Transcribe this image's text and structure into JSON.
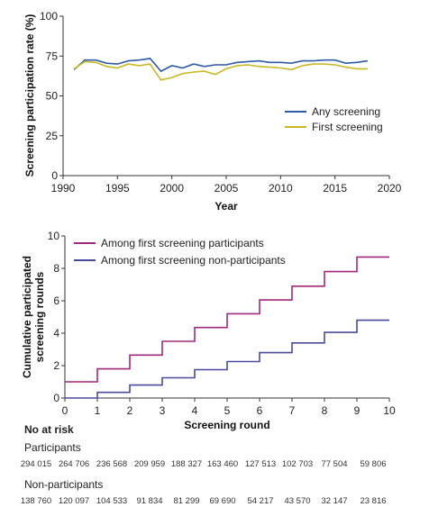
{
  "colors": {
    "any_screening": "#2e5aa7",
    "first_screening": "#c8b828",
    "among_participants": "#a0287e",
    "among_non_participants": "#4a4a9a",
    "axis": "#333333"
  },
  "chart_data": [
    {
      "type": "line",
      "xlabel": "Year",
      "ylabel": "Screening participation rate (%)",
      "xlim": [
        1990,
        2020
      ],
      "ylim": [
        0,
        100
      ],
      "xticks": [
        1990,
        1995,
        2000,
        2005,
        2010,
        2015,
        2020
      ],
      "yticks": [
        0,
        25,
        50,
        75,
        100
      ],
      "legend_position": "bottom-right",
      "grid": false,
      "series": [
        {
          "name": "Any screening",
          "x": [
            1991,
            1992,
            1993,
            1994,
            1995,
            1996,
            1997,
            1998,
            1999,
            2000,
            2001,
            2002,
            2003,
            2004,
            2005,
            2006,
            2007,
            2008,
            2009,
            2010,
            2011,
            2012,
            2013,
            2014,
            2015,
            2016,
            2017,
            2018
          ],
          "y": [
            66.5,
            72.5,
            72.5,
            70.5,
            70,
            72,
            72.5,
            73.5,
            65.5,
            69,
            67.5,
            70,
            68.5,
            69.5,
            69.5,
            71,
            71.5,
            72,
            71,
            71,
            70.5,
            72,
            72,
            72.5,
            72.5,
            70.5,
            71,
            72
          ]
        },
        {
          "name": "First screening",
          "x": [
            1991,
            1992,
            1993,
            1994,
            1995,
            1996,
            1997,
            1998,
            1999,
            2000,
            2001,
            2002,
            2003,
            2004,
            2005,
            2006,
            2007,
            2008,
            2009,
            2010,
            2011,
            2012,
            2013,
            2014,
            2015,
            2016,
            2017,
            2018
          ],
          "y": [
            67,
            71.5,
            71,
            68.5,
            67.5,
            70,
            69,
            70,
            60,
            61.5,
            64,
            65,
            65.5,
            63.5,
            67,
            69,
            69.5,
            68.5,
            68,
            67.5,
            66.5,
            69,
            70,
            70,
            69.5,
            68,
            67,
            67
          ]
        }
      ]
    },
    {
      "type": "line",
      "step": true,
      "xlabel": "Screening round",
      "ylabel": "Cumulative participated screening rounds",
      "xlim": [
        0,
        10
      ],
      "ylim": [
        0,
        10
      ],
      "xticks": [
        0,
        1,
        2,
        3,
        4,
        5,
        6,
        7,
        8,
        9,
        10
      ],
      "yticks": [
        0,
        2,
        4,
        6,
        8,
        10
      ],
      "legend_position": "top-left",
      "grid": false,
      "series": [
        {
          "name": "Among first screening participants",
          "x": [
            0,
            1,
            2,
            3,
            4,
            5,
            6,
            7,
            8,
            9,
            10
          ],
          "y": [
            1,
            1.8,
            2.65,
            3.5,
            4.35,
            5.2,
            6.05,
            6.9,
            7.8,
            8.7,
            8.7
          ]
        },
        {
          "name": "Among first screening non-participants",
          "x": [
            0,
            1,
            2,
            3,
            4,
            5,
            6,
            7,
            8,
            9,
            10
          ],
          "y": [
            0,
            0.35,
            0.8,
            1.25,
            1.75,
            2.25,
            2.8,
            3.4,
            4.05,
            4.8,
            4.8
          ]
        }
      ]
    }
  ],
  "risk_table": {
    "title": "No at risk",
    "groups": [
      {
        "label": "Participants",
        "values": [
          "294 015",
          "264 706",
          "236 568",
          "209 959",
          "188 327",
          "163 460",
          "127 513",
          "102 703",
          "77 504",
          "59 806"
        ]
      },
      {
        "label": "Non-participants",
        "values": [
          "138 760",
          "120 097",
          "104 533",
          "91 834",
          "81 299",
          "69 690",
          "54 217",
          "43 570",
          "32 147",
          "23 816"
        ]
      }
    ]
  }
}
